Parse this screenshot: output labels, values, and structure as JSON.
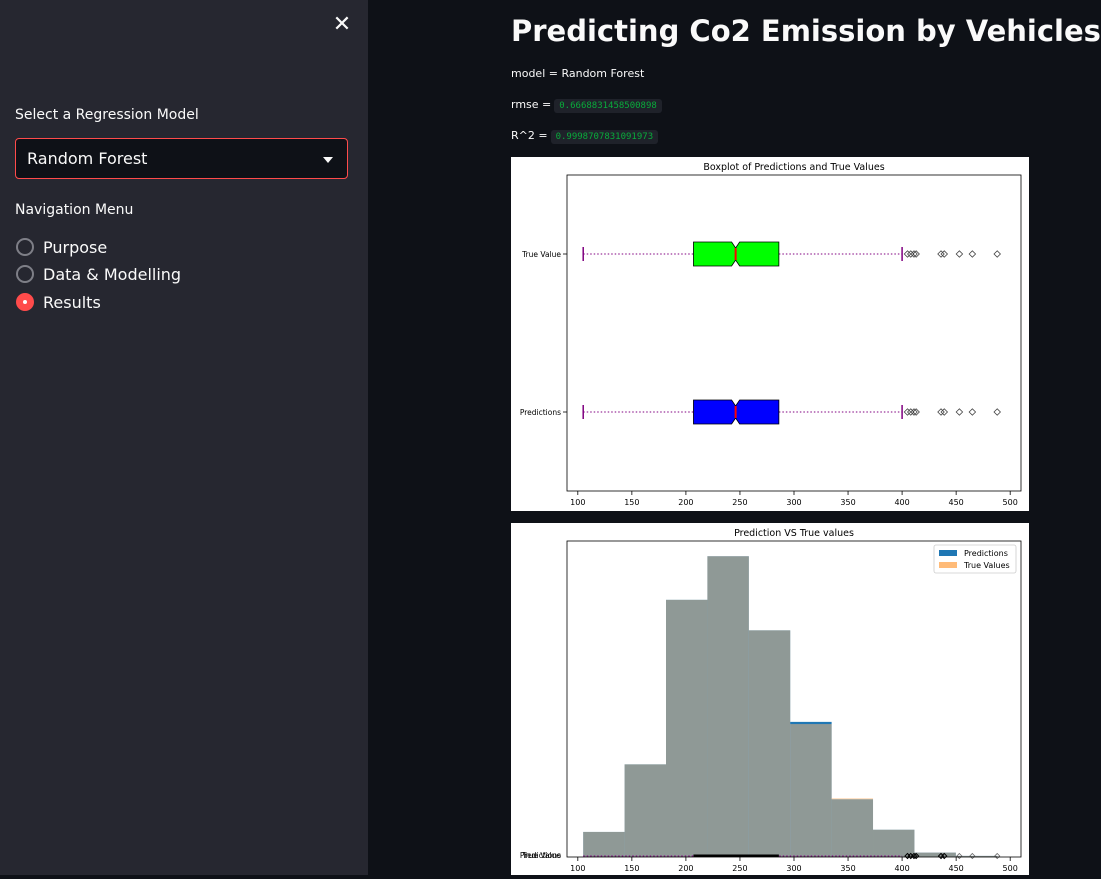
{
  "sidebar": {
    "select_label": "Select a Regression Model",
    "select_value": "Random Forest",
    "nav_label": "Navigation Menu",
    "nav_options": [
      {
        "label": "Purpose",
        "checked": false
      },
      {
        "label": "Data & Modelling",
        "checked": false
      },
      {
        "label": "Results",
        "checked": true
      }
    ]
  },
  "main": {
    "title": "Predicting Co2 Emission by Vehicles",
    "model_text": "model = Random Forest",
    "rmse_label": "rmse =",
    "rmse_value": "0.6668831458500898",
    "r2_label": "R^2 =",
    "r2_value": "0.9998707831091973"
  },
  "chart_data": [
    {
      "type": "boxplot",
      "title": "Boxplot of Predictions and True Values",
      "categories": [
        "True Value",
        "Predictions"
      ],
      "xticks": [
        100,
        150,
        200,
        250,
        300,
        350,
        400,
        450,
        500
      ],
      "xlim": [
        90,
        510
      ],
      "series": [
        {
          "name": "True Value",
          "whisker_low": 105,
          "q1": 207,
          "median": 246,
          "q3": 286,
          "whisker_high": 400,
          "fliers": [
            405,
            408,
            411,
            413,
            436,
            439,
            453,
            465,
            488
          ],
          "color": "#00ff00"
        },
        {
          "name": "Predictions",
          "whisker_low": 105,
          "q1": 207,
          "median": 246,
          "q3": 286,
          "whisker_high": 400,
          "fliers": [
            405,
            408,
            411,
            413,
            436,
            439,
            453,
            465,
            488
          ],
          "color": "#0000ff"
        }
      ]
    },
    {
      "type": "histogram",
      "title": "Prediction VS True values",
      "xticks": [
        100,
        150,
        200,
        250,
        300,
        350,
        400,
        450,
        500
      ],
      "xlim": [
        90,
        510
      ],
      "bin_edges": [
        105,
        143.3,
        181.6,
        219.9,
        258.2,
        296.5,
        334.8,
        373.1,
        411.4,
        449.7,
        488
      ],
      "series": [
        {
          "name": "Predictions",
          "color": "#1f77b4",
          "counts": [
            23,
            85,
            236,
            276,
            208,
            124,
            53,
            25,
            4,
            1
          ]
        },
        {
          "name": "True Values",
          "color": "#ffbb78",
          "counts": [
            23,
            85,
            236,
            276,
            208,
            122,
            54,
            25,
            4,
            1
          ]
        }
      ],
      "legend": "top-right"
    }
  ]
}
